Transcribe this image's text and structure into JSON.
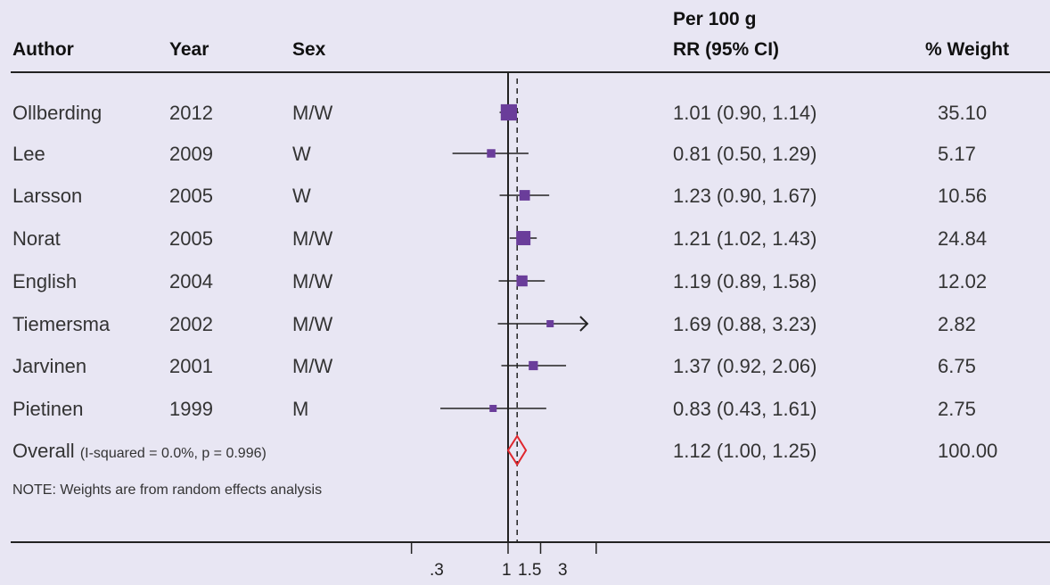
{
  "headers": {
    "author": "Author",
    "year": "Year",
    "sex": "Sex",
    "effect_line1": "Per 100 g",
    "effect_line2": "RR (95% CI)",
    "weight": "% Weight"
  },
  "rows": [
    {
      "author": "Ollberding",
      "year": "2012",
      "sex": "M/W",
      "rr_text": "1.01 (0.90, 1.14)",
      "weight_text": "35.10"
    },
    {
      "author": "Lee",
      "year": "2009",
      "sex": "W",
      "rr_text": "0.81 (0.50, 1.29)",
      "weight_text": "5.17"
    },
    {
      "author": "Larsson",
      "year": "2005",
      "sex": "W",
      "rr_text": "1.23 (0.90, 1.67)",
      "weight_text": "10.56"
    },
    {
      "author": "Norat",
      "year": "2005",
      "sex": "M/W",
      "rr_text": "1.21 (1.02, 1.43)",
      "weight_text": "24.84"
    },
    {
      "author": "English",
      "year": "2004",
      "sex": "M/W",
      "rr_text": "1.19 (0.89, 1.58)",
      "weight_text": "12.02"
    },
    {
      "author": "Tiemersma",
      "year": "2002",
      "sex": "M/W",
      "rr_text": "1.69 (0.88, 3.23)",
      "weight_text": "2.82"
    },
    {
      "author": "Jarvinen",
      "year": "2001",
      "sex": "M/W",
      "rr_text": "1.37 (0.92, 2.06)",
      "weight_text": "6.75"
    },
    {
      "author": "Pietinen",
      "year": "1999",
      "sex": "M",
      "rr_text": "0.83 (0.43, 1.61)",
      "weight_text": "2.75"
    }
  ],
  "overall": {
    "label": "Overall",
    "stats": "(I-squared = 0.0%, p = 0.996)",
    "rr_text": "1.12 (1.00, 1.25)",
    "weight_text": "100.00"
  },
  "note": "NOTE: Weights are from random effects analysis",
  "colors": {
    "background": "#e8e6f3",
    "marker": "#6a3d9a",
    "diamond": "#e0262d",
    "line": "#222222"
  },
  "chart_data": {
    "type": "forest",
    "x_scale": "log",
    "x_ticks": [
      0.3,
      1,
      1.5,
      3
    ],
    "x_tick_labels": [
      ".3",
      "1",
      "1.5",
      "3"
    ],
    "null_line": 1,
    "overall_line": 1.12,
    "studies": [
      {
        "label": "Ollberding",
        "rr": 1.01,
        "lo": 0.9,
        "hi": 1.14,
        "weight": 35.1,
        "arrow": false
      },
      {
        "label": "Lee",
        "rr": 0.81,
        "lo": 0.5,
        "hi": 1.29,
        "weight": 5.17,
        "arrow": false
      },
      {
        "label": "Larsson",
        "rr": 1.23,
        "lo": 0.9,
        "hi": 1.67,
        "weight": 10.56,
        "arrow": false
      },
      {
        "label": "Norat",
        "rr": 1.21,
        "lo": 1.02,
        "hi": 1.43,
        "weight": 24.84,
        "arrow": false
      },
      {
        "label": "English",
        "rr": 1.19,
        "lo": 0.89,
        "hi": 1.58,
        "weight": 12.02,
        "arrow": false
      },
      {
        "label": "Tiemersma",
        "rr": 1.69,
        "lo": 0.88,
        "hi": 3.23,
        "weight": 2.82,
        "arrow": true
      },
      {
        "label": "Jarvinen",
        "rr": 1.37,
        "lo": 0.92,
        "hi": 2.06,
        "weight": 6.75,
        "arrow": false
      },
      {
        "label": "Pietinen",
        "rr": 0.83,
        "lo": 0.43,
        "hi": 1.61,
        "weight": 2.75,
        "arrow": false
      }
    ],
    "overall": {
      "rr": 1.12,
      "lo": 1.0,
      "hi": 1.25,
      "weight": 100.0
    }
  }
}
